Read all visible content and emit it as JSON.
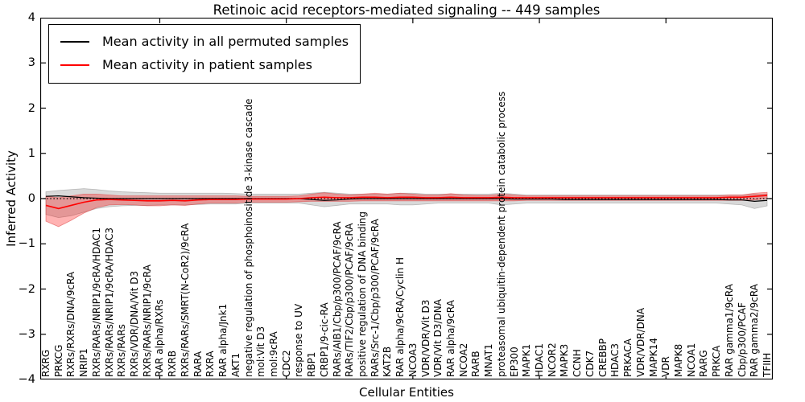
{
  "title": "Retinoic acid receptors-mediated signaling -- 449 samples",
  "axes": {
    "ylabel": "Inferred Activity",
    "xlabel": "Cellular Entities",
    "ytick_values": [
      4,
      3,
      2,
      1,
      0,
      -1,
      -2,
      -3,
      -4
    ],
    "ytick_labels": [
      "4",
      "3",
      "2",
      "1",
      "0",
      "−1",
      "−2",
      "−3",
      "−4"
    ]
  },
  "legend": {
    "items": [
      {
        "label": "Mean activity in all permuted samples",
        "color": "#000000"
      },
      {
        "label": "Mean activity in patient samples",
        "color": "#ff0000"
      }
    ]
  },
  "chart_data": {
    "type": "line",
    "title": "Retinoic acid receptors-mediated signaling -- 449 samples",
    "xlabel": "Cellular Entities",
    "ylabel": "Inferred Activity",
    "ylim": [
      -4,
      4
    ],
    "grid": false,
    "legend_position": "upper left",
    "zero_line_style": "dotted",
    "categories": [
      "RXRG",
      "PRKCG",
      "RXRs/RXRs/DNA/9cRA",
      "NRIP1",
      "RXRs/RARs/NRIP1/9cRA/HDAC1",
      "RXRs/RARs/NRIP1/9cRA/HDAC3",
      "RXRs/RARs",
      "RXRs/VDR/DNA/Vit D3",
      "RXRs/RARs/NRIP1/9cRA",
      "RAR alpha/RXRs",
      "RXRB",
      "RXRs/RARs/SMRT(N-CoR2)/9cRA",
      "RARA",
      "RXRA",
      "RAR alpha/Jnk1",
      "AKT1",
      "negative regulation of phosphoinositide 3-kinase cascade",
      "mol:Vit D3",
      "mol:9cRA",
      "CDC2",
      "response to UV",
      "RBP1",
      "CRBP1/9-cic-RA",
      "RARs/AIB1/Cbp/p300/PCAF/9cRA",
      "RARs/TIF2/Cbp/p300/PCAF/9cRA",
      "positive regulation of DNA binding",
      "RARs/Src-1/Cbp/p300/PCAF/9cRA",
      "KAT2B",
      "RAR alpha/9cRA/Cyclin H",
      "NCOA3",
      "VDR/VDR/Vit D3",
      "VDR/Vit D3/DNA",
      "RAR alpha/9cRA",
      "NCOA2",
      "RARB",
      "MNAT1",
      "proteasomal ubiquitin-dependent protein catabolic process",
      "EP300",
      "MAPK1",
      "HDAC1",
      "NCOR2",
      "MAPK3",
      "CCNH",
      "CDK7",
      "CREBBP",
      "HDAC3",
      "PRKACA",
      "VDR/VDR/DNA",
      "MAPK14",
      "VDR",
      "MAPK8",
      "NCOA1",
      "RARG",
      "PRKCA",
      "RAR gamma1/9cRA",
      "Cbp/p300/PCAF",
      "RAR gamma2/9cRA",
      "TFIIH"
    ],
    "series": [
      {
        "name": "Mean activity in all permuted samples",
        "color": "#000000",
        "band_fill": "rgba(160,160,160,0.40)",
        "band_edge": "rgba(140,140,140,0.55)",
        "values": [
          0.05,
          0.06,
          0.04,
          0.02,
          0.01,
          0,
          0,
          0,
          0,
          0,
          0,
          0,
          0,
          0,
          0,
          0,
          0,
          0,
          0,
          0,
          0,
          -0.02,
          -0.04,
          -0.03,
          -0.01,
          0,
          0,
          0,
          0,
          0,
          0,
          0,
          0,
          0,
          0,
          0,
          0,
          -0.01,
          -0.01,
          -0.01,
          -0.01,
          -0.02,
          -0.02,
          -0.02,
          -0.02,
          -0.02,
          -0.02,
          -0.02,
          -0.02,
          -0.02,
          -0.02,
          -0.02,
          -0.02,
          -0.02,
          -0.03,
          -0.03,
          -0.06,
          -0.04
        ],
        "band_upper": [
          0.15,
          0.18,
          0.2,
          0.22,
          0.2,
          0.17,
          0.15,
          0.14,
          0.13,
          0.12,
          0.12,
          0.12,
          0.12,
          0.12,
          0.12,
          0.11,
          0.1,
          0.1,
          0.1,
          0.1,
          0.1,
          0.12,
          0.14,
          0.12,
          0.1,
          0.1,
          0.1,
          0.1,
          0.12,
          0.12,
          0.1,
          0.1,
          0.1,
          0.1,
          0.1,
          0.1,
          0.12,
          0.1,
          0.08,
          0.08,
          0.08,
          0.08,
          0.08,
          0.08,
          0.08,
          0.08,
          0.08,
          0.08,
          0.08,
          0.08,
          0.08,
          0.08,
          0.08,
          0.08,
          0.08,
          0.08,
          0.1,
          0.1
        ],
        "band_lower": [
          -0.35,
          -0.42,
          -0.38,
          -0.3,
          -0.22,
          -0.18,
          -0.16,
          -0.15,
          -0.15,
          -0.14,
          -0.14,
          -0.14,
          -0.13,
          -0.12,
          -0.12,
          -0.12,
          -0.1,
          -0.1,
          -0.1,
          -0.1,
          -0.1,
          -0.14,
          -0.18,
          -0.15,
          -0.12,
          -0.12,
          -0.12,
          -0.12,
          -0.14,
          -0.14,
          -0.12,
          -0.1,
          -0.1,
          -0.1,
          -0.1,
          -0.1,
          -0.14,
          -0.12,
          -0.1,
          -0.1,
          -0.1,
          -0.1,
          -0.1,
          -0.1,
          -0.1,
          -0.1,
          -0.1,
          -0.1,
          -0.1,
          -0.1,
          -0.1,
          -0.1,
          -0.1,
          -0.1,
          -0.12,
          -0.14,
          -0.22,
          -0.16
        ]
      },
      {
        "name": "Mean activity in patient samples",
        "color": "#ff0000",
        "band_fill": "rgba(255,0,0,0.30)",
        "band_edge": "rgba(220,60,60,0.55)",
        "values": [
          -0.15,
          -0.22,
          -0.15,
          -0.08,
          -0.03,
          -0.02,
          -0.03,
          -0.04,
          -0.05,
          -0.05,
          -0.04,
          -0.05,
          -0.03,
          -0.02,
          -0.02,
          -0.02,
          -0.01,
          -0.01,
          -0.01,
          -0.01,
          0,
          0.02,
          0.03,
          0.02,
          0.02,
          0.03,
          0.03,
          0.02,
          0.03,
          0.03,
          0.02,
          0.02,
          0.03,
          0.02,
          0.02,
          0.02,
          0.03,
          0.02,
          0.02,
          0.02,
          0.02,
          0.02,
          0.02,
          0.02,
          0.02,
          0.02,
          0.02,
          0.02,
          0.02,
          0.02,
          0.02,
          0.02,
          0.02,
          0.02,
          0.03,
          0.03,
          0.05,
          0.07
        ],
        "band_upper": [
          0.05,
          0.02,
          0.06,
          0.1,
          0.1,
          0.08,
          0.06,
          0.06,
          0.06,
          0.06,
          0.06,
          0.06,
          0.06,
          0.06,
          0.06,
          0.06,
          0.05,
          0.05,
          0.05,
          0.05,
          0.06,
          0.1,
          0.13,
          0.1,
          0.08,
          0.1,
          0.12,
          0.1,
          0.12,
          0.1,
          0.08,
          0.08,
          0.11,
          0.08,
          0.07,
          0.07,
          0.1,
          0.08,
          0.06,
          0.06,
          0.06,
          0.06,
          0.06,
          0.06,
          0.06,
          0.06,
          0.06,
          0.06,
          0.06,
          0.06,
          0.06,
          0.06,
          0.06,
          0.06,
          0.08,
          0.08,
          0.12,
          0.14
        ],
        "band_lower": [
          -0.5,
          -0.62,
          -0.48,
          -0.32,
          -0.2,
          -0.14,
          -0.13,
          -0.14,
          -0.16,
          -0.16,
          -0.14,
          -0.15,
          -0.12,
          -0.1,
          -0.1,
          -0.1,
          -0.08,
          -0.08,
          -0.08,
          -0.08,
          -0.07,
          -0.06,
          -0.06,
          -0.06,
          -0.06,
          -0.05,
          -0.05,
          -0.05,
          -0.05,
          -0.05,
          -0.05,
          -0.05,
          -0.05,
          -0.05,
          -0.05,
          -0.05,
          -0.05,
          -0.05,
          -0.04,
          -0.04,
          -0.04,
          -0.04,
          -0.04,
          -0.04,
          -0.04,
          -0.04,
          -0.04,
          -0.04,
          -0.04,
          -0.04,
          -0.04,
          -0.04,
          -0.04,
          -0.04,
          -0.04,
          -0.04,
          -0.03,
          0
        ]
      }
    ]
  }
}
